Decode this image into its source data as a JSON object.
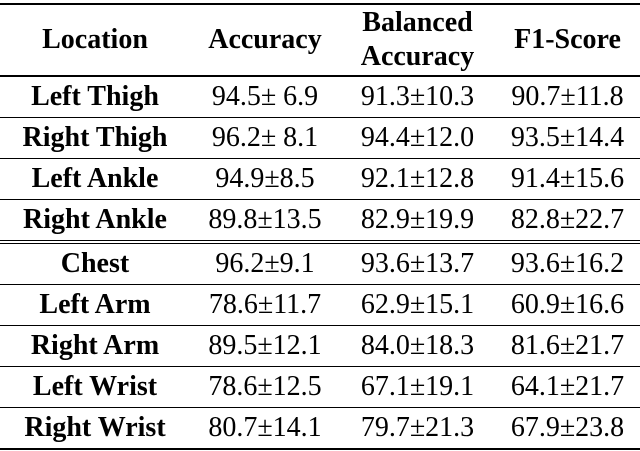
{
  "table": {
    "background": "#ffffff",
    "text_color": "#000000",
    "rule_color": "#000000",
    "headers": [
      {
        "label": "Location"
      },
      {
        "label": "Accuracy"
      },
      {
        "label": "Balanced Accuracy",
        "line1": "Balanced",
        "line2": "Accuracy"
      },
      {
        "label": "F1-Score"
      }
    ],
    "rows": [
      {
        "location": "Left Thigh",
        "accuracy": "94.5± 6.9",
        "balanced_accuracy": "91.3±10.3",
        "f1_score": "90.7±11.8"
      },
      {
        "location": "Right Thigh",
        "accuracy": "96.2± 8.1",
        "balanced_accuracy": "94.4±12.0",
        "f1_score": "93.5±14.4"
      },
      {
        "location": "Left Ankle",
        "accuracy": "94.9±8.5",
        "balanced_accuracy": "92.1±12.8",
        "f1_score": "91.4±15.6"
      },
      {
        "location": "Right Ankle",
        "accuracy": "89.8±13.5",
        "balanced_accuracy": "82.9±19.9",
        "f1_score": "82.8±22.7"
      },
      {
        "location": "Chest",
        "accuracy": "96.2±9.1",
        "balanced_accuracy": "93.6±13.7",
        "f1_score": "93.6±16.2"
      },
      {
        "location": "Left Arm",
        "accuracy": "78.6±11.7",
        "balanced_accuracy": "62.9±15.1",
        "f1_score": "60.9±16.6"
      },
      {
        "location": "Right Arm",
        "accuracy": "89.5±12.1",
        "balanced_accuracy": "84.0±18.3",
        "f1_score": "81.6±21.7"
      },
      {
        "location": "Left Wrist",
        "accuracy": "78.6±12.5",
        "balanced_accuracy": "67.1±19.1",
        "f1_score": "64.1±21.7"
      },
      {
        "location": "Right Wrist",
        "accuracy": "80.7±14.1",
        "balanced_accuracy": "79.7±21.3",
        "f1_score": "67.9±23.8"
      }
    ]
  }
}
